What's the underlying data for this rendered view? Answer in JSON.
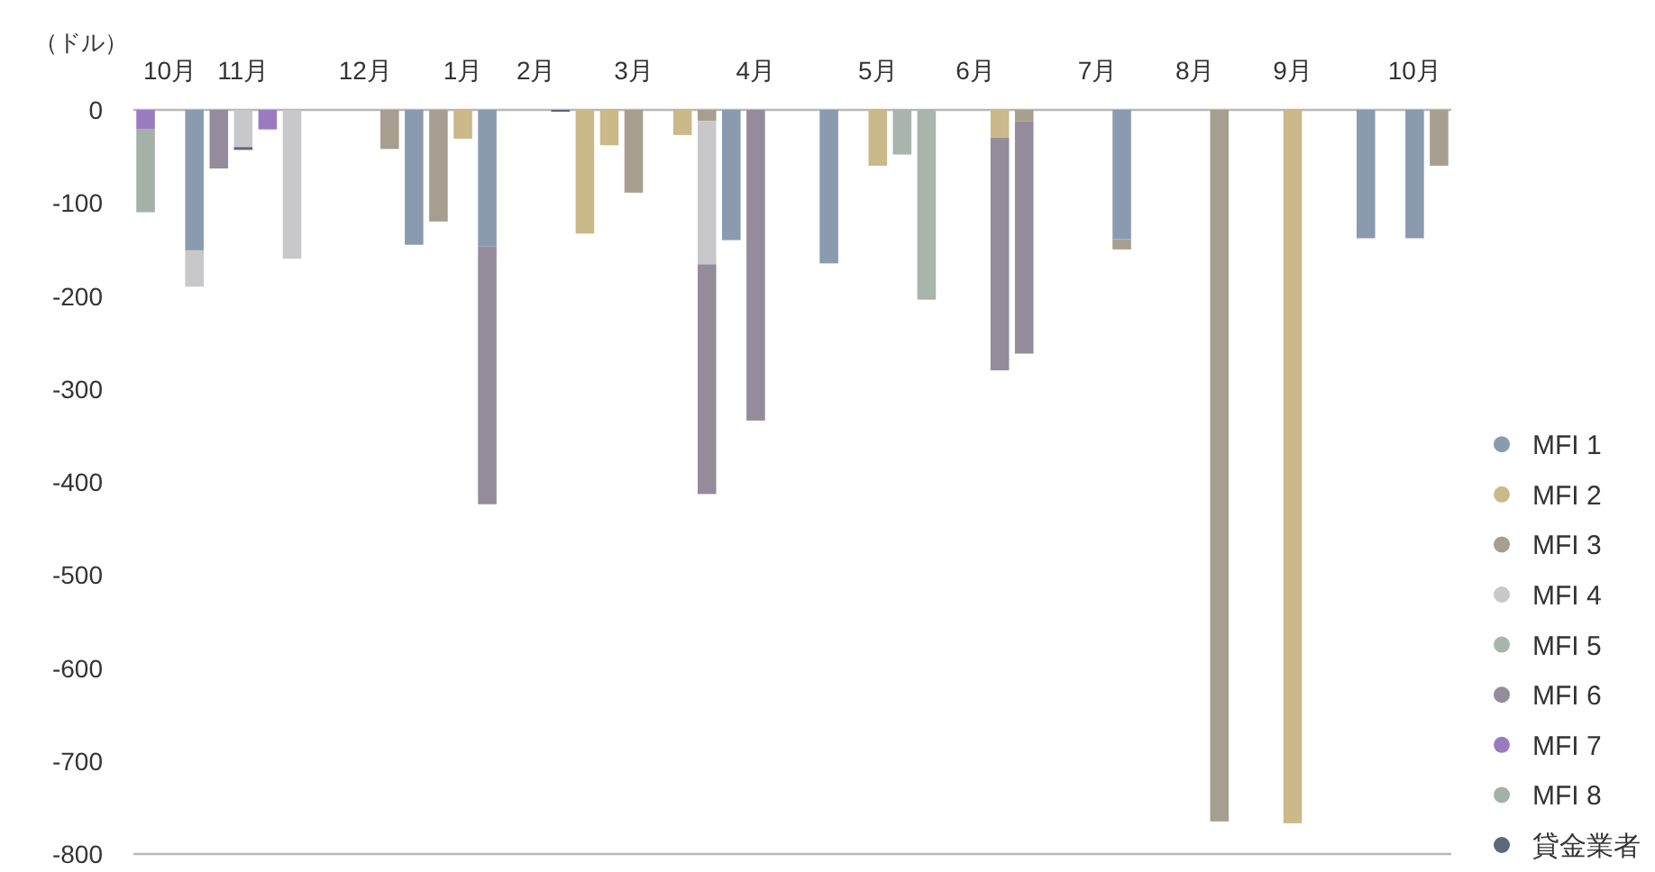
{
  "chart_data": {
    "type": "bar",
    "stacked": true,
    "ylabel": "（ドル）",
    "ylim": [
      -800,
      0
    ],
    "yticks": [
      0,
      -100,
      -200,
      -300,
      -400,
      -500,
      -600,
      -700,
      -800
    ],
    "legend": "right",
    "categories": [
      null,
      "10月",
      null,
      null,
      "11月",
      null,
      null,
      null,
      null,
      "12月",
      null,
      null,
      null,
      "1月",
      null,
      null,
      "2月",
      null,
      null,
      null,
      "3月",
      null,
      null,
      null,
      null,
      "4月",
      null,
      null,
      null,
      null,
      "5月",
      null,
      null,
      null,
      "6月",
      null,
      null,
      null,
      null,
      "7月",
      null,
      null,
      null,
      "8月",
      null,
      null,
      null,
      "9月",
      null,
      null,
      null,
      null,
      "10月",
      null
    ],
    "series": [
      {
        "name": "MFI 1",
        "color": "#8a9bb0",
        "values": [
          null,
          null,
          -151,
          null,
          null,
          null,
          null,
          null,
          null,
          null,
          null,
          -145,
          null,
          null,
          -147,
          null,
          null,
          null,
          null,
          null,
          null,
          null,
          null,
          null,
          -140,
          null,
          null,
          null,
          -165,
          null,
          null,
          null,
          null,
          null,
          null,
          null,
          null,
          null,
          null,
          null,
          -139,
          null,
          null,
          null,
          null,
          null,
          null,
          null,
          null,
          null,
          -138,
          null,
          -138,
          null
        ]
      },
      {
        "name": "MFI 2",
        "color": "#cbb98a",
        "values": [
          null,
          null,
          null,
          null,
          null,
          null,
          null,
          null,
          null,
          null,
          null,
          null,
          null,
          -31,
          null,
          null,
          null,
          null,
          -133,
          -38,
          null,
          null,
          -27,
          null,
          null,
          null,
          null,
          null,
          null,
          null,
          -60,
          null,
          null,
          null,
          null,
          -30,
          null,
          null,
          null,
          null,
          null,
          null,
          null,
          null,
          null,
          null,
          null,
          -767,
          null,
          null,
          null,
          null,
          null,
          null
        ]
      },
      {
        "name": "MFI 3",
        "color": "#a69f8f",
        "values": [
          null,
          null,
          null,
          null,
          null,
          null,
          null,
          null,
          null,
          null,
          -42,
          null,
          -120,
          null,
          null,
          null,
          null,
          null,
          null,
          null,
          -89,
          null,
          null,
          -12,
          null,
          null,
          null,
          null,
          null,
          null,
          null,
          null,
          null,
          null,
          null,
          null,
          -12,
          null,
          null,
          null,
          -11,
          null,
          null,
          null,
          -765,
          null,
          null,
          null,
          null,
          null,
          null,
          null,
          null,
          -60
        ]
      },
      {
        "name": "MFI 4",
        "color": "#c8c8ca",
        "values": [
          null,
          null,
          -39,
          null,
          -40,
          null,
          -160,
          null,
          null,
          null,
          null,
          null,
          null,
          null,
          null,
          null,
          null,
          null,
          null,
          null,
          null,
          null,
          null,
          -154,
          null,
          null,
          null,
          null,
          null,
          null,
          null,
          null,
          null,
          null,
          null,
          null,
          null,
          null,
          null,
          null,
          null,
          null,
          null,
          null,
          null,
          null,
          null,
          null,
          null,
          null,
          null,
          null,
          null,
          null
        ]
      },
      {
        "name": "MFI 5",
        "color": "#a8b4ac",
        "values": [
          null,
          null,
          null,
          null,
          null,
          null,
          null,
          null,
          null,
          null,
          null,
          null,
          null,
          null,
          null,
          null,
          null,
          null,
          null,
          null,
          null,
          null,
          null,
          null,
          null,
          null,
          null,
          null,
          null,
          null,
          null,
          -48,
          -204,
          null,
          null,
          null,
          null,
          null,
          null,
          null,
          null,
          null,
          null,
          null,
          null,
          null,
          null,
          null,
          null,
          null,
          null,
          null,
          null,
          null
        ]
      },
      {
        "name": "MFI 6",
        "color": "#958c9b",
        "values": [
          null,
          null,
          null,
          -63,
          null,
          null,
          null,
          null,
          null,
          null,
          null,
          null,
          null,
          null,
          -277,
          null,
          null,
          null,
          null,
          null,
          null,
          null,
          null,
          -247,
          null,
          -334,
          null,
          null,
          null,
          null,
          null,
          null,
          null,
          null,
          null,
          -250,
          -250,
          null,
          null,
          null,
          null,
          null,
          null,
          null,
          null,
          null,
          null,
          null,
          null,
          null,
          null,
          null,
          null,
          null
        ]
      },
      {
        "name": "MFI 7",
        "color": "#9b7bbf",
        "values": [
          -21,
          null,
          null,
          null,
          null,
          -21,
          null,
          null,
          null,
          null,
          null,
          null,
          null,
          null,
          null,
          null,
          null,
          null,
          null,
          null,
          null,
          null,
          null,
          null,
          null,
          null,
          null,
          null,
          null,
          null,
          null,
          null,
          null,
          null,
          null,
          null,
          null,
          null,
          null,
          null,
          null,
          null,
          null,
          null,
          null,
          null,
          null,
          null,
          null,
          null,
          null,
          null,
          null,
          null
        ]
      },
      {
        "name": "MFI 8",
        "color": "#a4b0a8",
        "values": [
          -89,
          null,
          null,
          null,
          null,
          null,
          null,
          null,
          null,
          null,
          null,
          null,
          null,
          null,
          null,
          null,
          null,
          null,
          null,
          null,
          null,
          null,
          null,
          null,
          null,
          null,
          null,
          null,
          null,
          null,
          null,
          null,
          null,
          null,
          null,
          null,
          null,
          null,
          null,
          null,
          null,
          null,
          null,
          null,
          null,
          null,
          null,
          null,
          null,
          null,
          null,
          null,
          null,
          null
        ]
      },
      {
        "name": "貸金業者",
        "color": "#5f6878",
        "values": [
          null,
          null,
          null,
          null,
          -3,
          null,
          null,
          null,
          null,
          null,
          null,
          null,
          null,
          null,
          null,
          null,
          null,
          -2,
          null,
          null,
          null,
          null,
          null,
          null,
          null,
          null,
          null,
          null,
          null,
          null,
          null,
          null,
          null,
          null,
          null,
          null,
          null,
          null,
          null,
          null,
          null,
          null,
          null,
          null,
          null,
          null,
          null,
          null,
          null,
          null,
          null,
          null,
          null,
          null
        ]
      }
    ]
  }
}
